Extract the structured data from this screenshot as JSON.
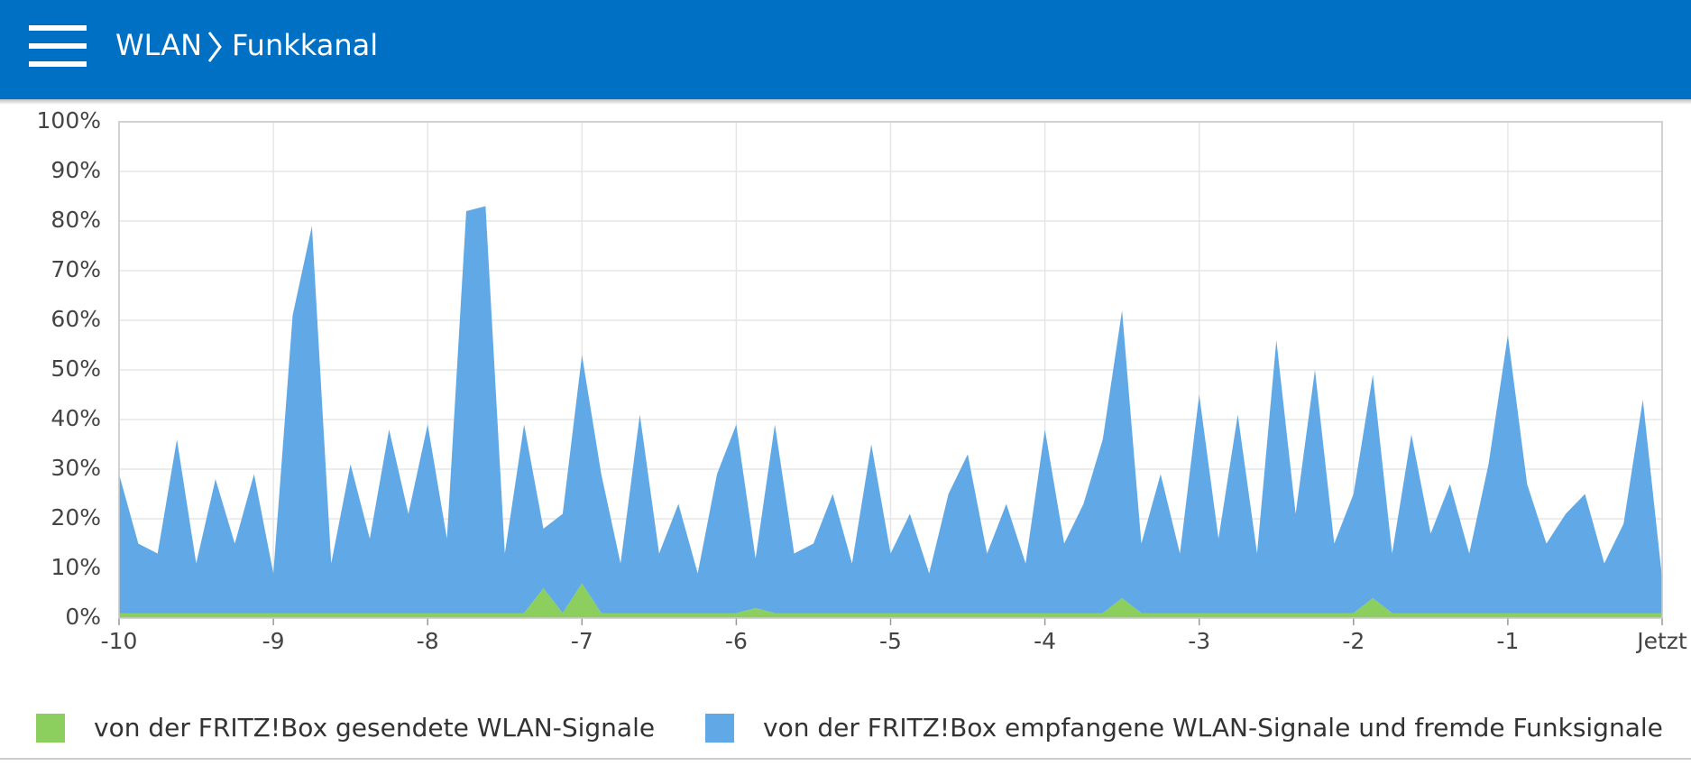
{
  "header": {
    "breadcrumb": [
      "WLAN",
      "Funkkanal"
    ]
  },
  "chart_data": {
    "type": "area",
    "stacked": true,
    "grid": true,
    "x": [
      -10,
      -9.875,
      -9.75,
      -9.625,
      -9.5,
      -9.375,
      -9.25,
      -9.125,
      -9,
      -8.875,
      -8.75,
      -8.625,
      -8.5,
      -8.375,
      -8.25,
      -8.125,
      -8,
      -7.875,
      -7.75,
      -7.625,
      -7.5,
      -7.375,
      -7.25,
      -7.125,
      -7,
      -6.875,
      -6.75,
      -6.625,
      -6.5,
      -6.375,
      -6.25,
      -6.125,
      -6,
      -5.875,
      -5.75,
      -5.625,
      -5.5,
      -5.375,
      -5.25,
      -5.125,
      -5,
      -4.875,
      -4.75,
      -4.625,
      -4.5,
      -4.375,
      -4.25,
      -4.125,
      -4,
      -3.875,
      -3.75,
      -3.625,
      -3.5,
      -3.375,
      -3.25,
      -3.125,
      -3,
      -2.875,
      -2.75,
      -2.625,
      -2.5,
      -2.375,
      -2.25,
      -2.125,
      -2,
      -1.875,
      -1.75,
      -1.625,
      -1.5,
      -1.375,
      -1.25,
      -1.125,
      -1,
      -0.875,
      -0.75,
      -0.625,
      -0.5,
      -0.375,
      -0.25,
      -0.125,
      0
    ],
    "series": [
      {
        "name": "von der FRITZ!Box gesendete WLAN-Signale",
        "color": "#8ccf5f",
        "values": [
          1,
          1,
          1,
          1,
          1,
          1,
          1,
          1,
          1,
          1,
          1,
          1,
          1,
          1,
          1,
          1,
          1,
          1,
          1,
          1,
          1,
          1,
          6,
          1,
          7,
          1,
          1,
          1,
          1,
          1,
          1,
          1,
          1,
          2,
          1,
          1,
          1,
          1,
          1,
          1,
          1,
          1,
          1,
          1,
          1,
          1,
          1,
          1,
          1,
          1,
          1,
          1,
          4,
          1,
          1,
          1,
          1,
          1,
          1,
          1,
          1,
          1,
          1,
          1,
          1,
          4,
          1,
          1,
          1,
          1,
          1,
          1,
          1,
          1,
          1,
          1,
          1,
          1,
          1,
          1,
          1
        ]
      },
      {
        "name": "von der FRITZ!Box empfangene WLAN-Signale und fremde Funksignale",
        "color": "#60a9e6",
        "values": [
          28,
          14,
          12,
          35,
          10,
          27,
          14,
          28,
          8,
          60,
          78,
          10,
          30,
          15,
          37,
          20,
          38,
          15,
          81,
          82,
          12,
          38,
          12,
          20,
          46,
          28,
          10,
          40,
          12,
          22,
          8,
          28,
          38,
          10,
          38,
          12,
          14,
          24,
          10,
          34,
          12,
          20,
          8,
          24,
          32,
          12,
          22,
          10,
          37,
          14,
          22,
          35,
          58,
          14,
          28,
          12,
          44,
          15,
          40,
          12,
          55,
          20,
          49,
          14,
          24,
          45,
          12,
          36,
          16,
          26,
          12,
          30,
          56,
          26,
          14,
          20,
          24,
          10,
          18,
          43,
          7
        ]
      }
    ],
    "xlim": [
      -10,
      0
    ],
    "xticks": [
      -10,
      -9,
      -8,
      -7,
      -6,
      -5,
      -4,
      -3,
      -2,
      -1,
      {
        "value": 0,
        "label": "Jetzt"
      }
    ],
    "ylim": [
      0,
      100
    ],
    "yticks": [
      {
        "value": 0,
        "label": "0%"
      },
      {
        "value": 10,
        "label": "10%"
      },
      {
        "value": 20,
        "label": "20%"
      },
      {
        "value": 30,
        "label": "30%"
      },
      {
        "value": 40,
        "label": "40%"
      },
      {
        "value": 50,
        "label": "50%"
      },
      {
        "value": 60,
        "label": "60%"
      },
      {
        "value": 70,
        "label": "70%"
      },
      {
        "value": 80,
        "label": "80%"
      },
      {
        "value": 90,
        "label": "90%"
      },
      {
        "value": 100,
        "label": "100%"
      }
    ]
  }
}
